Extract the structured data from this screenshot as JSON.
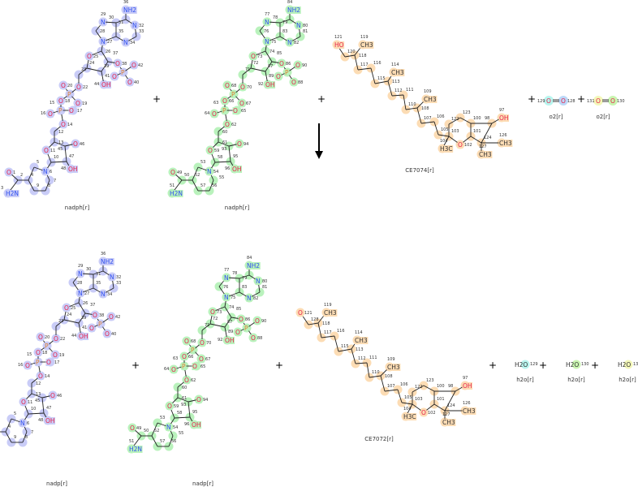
{
  "reaction": {
    "direction_arrow": "down-arrow-icon",
    "plus": "+",
    "reactants": [
      {
        "name": "nadph[r]",
        "highlight": "#c9ccf7"
      },
      {
        "name": "nadph[r]",
        "highlight": "#b9f2bc"
      },
      {
        "name": "CE7074[r]",
        "highlight": "#fcdcb4"
      },
      {
        "name": "o2[r]",
        "atoms": [
          "O",
          "O"
        ],
        "nums": [
          "129",
          "128"
        ],
        "highlights": [
          "#b8f5ee",
          "#bcd8f8"
        ]
      },
      {
        "name": "o2[r]",
        "atoms": [
          "O",
          "O"
        ],
        "nums": [
          "131",
          "130"
        ],
        "highlights": [
          "#f3f7b8",
          "#c9f5b0"
        ]
      }
    ],
    "products": [
      {
        "name": "nadp[r]",
        "highlight": "#c9ccf7"
      },
      {
        "name": "nadp[r]",
        "highlight": "#b9f2bc"
      },
      {
        "name": "CE7072[r]",
        "highlight": "#fcdcb4"
      },
      {
        "name": "h2o[r]",
        "formula": "H2O",
        "num": "129",
        "highlight": "#b8f5ee"
      },
      {
        "name": "h2o[r]",
        "formula": "H2O",
        "num": "130",
        "highlight": "#c9f5b0"
      },
      {
        "name": "h2o[r]",
        "formula": "H2O",
        "num": "131",
        "highlight": "#f3f7b8"
      }
    ]
  },
  "nucleotide_elements": [
    "NH2",
    "",
    "N",
    "",
    "N",
    "",
    "",
    "N",
    "",
    "N",
    "",
    "O",
    "",
    "",
    "",
    "O",
    "P",
    "O",
    "O",
    "O",
    "OH",
    "",
    "O",
    "P",
    "O",
    "O",
    "O",
    "P",
    "O",
    "O",
    "O",
    "",
    "",
    "O",
    "",
    "",
    "O",
    "",
    "OH",
    "N",
    "",
    "",
    "",
    "",
    "",
    "",
    "O",
    "H2N"
  ],
  "nadph_blue_nums": [
    "36",
    "31",
    "32",
    "33",
    "34",
    "35",
    "30",
    "29",
    "28",
    "27",
    "26",
    "25",
    "24",
    "39",
    "37",
    "38",
    "",
    "42",
    "41",
    "40",
    "44",
    "23",
    "22",
    "",
    "20",
    "19",
    "18",
    "15",
    "16",
    "17",
    "14",
    "12",
    "13",
    "11",
    "10",
    "45",
    "46",
    "47",
    "48",
    "6",
    "5",
    "4",
    "9",
    "8",
    "7",
    "2",
    "1",
    "3"
  ],
  "nadph_green_nums": [
    "84",
    "79",
    "80",
    "81",
    "82",
    "83",
    "78",
    "77",
    "76",
    "75",
    "74",
    "73",
    "72",
    "87",
    "85",
    "86",
    "",
    "90",
    "89",
    "88",
    "92",
    "71",
    "70",
    "",
    "68",
    "67",
    "66",
    "63",
    "64",
    "65",
    "62",
    "60",
    "61",
    "59",
    "58",
    "93",
    "94",
    "95",
    "96",
    "54",
    "53",
    "52",
    "57",
    "56",
    "55",
    "50",
    "49",
    "51"
  ],
  "chromanol_elements": [
    "HO",
    "",
    "",
    "CH3",
    "",
    "",
    "",
    "",
    "CH3",
    "",
    "",
    "",
    "",
    "CH3",
    "",
    "",
    "",
    "",
    "O",
    "",
    "",
    "",
    "",
    "OH",
    "",
    "CH3",
    "",
    "CH3",
    "H3C"
  ],
  "ce7074_nums": [
    "121",
    "120",
    "118",
    "119",
    "117",
    "116",
    "115",
    "113",
    "114",
    "112",
    "111",
    "110",
    "108",
    "109",
    "107",
    "106",
    "105",
    "103",
    "102",
    "101",
    "122",
    "123",
    "100",
    "97",
    "98",
    "126",
    "124",
    "127",
    "104"
  ],
  "ce7072_elements": [
    "O",
    "",
    "",
    "CH3",
    "",
    "",
    "",
    "",
    "CH3",
    "",
    "",
    "",
    "",
    "CH3",
    "",
    "",
    "",
    "",
    "O",
    "",
    "",
    "",
    "",
    "OH",
    "",
    "CH3",
    "",
    "CH3",
    "H3C"
  ],
  "ce7072_nums": [
    "121",
    "128",
    "118",
    "119",
    "117",
    "116",
    "115",
    "113",
    "114",
    "112",
    "111",
    "110",
    "108",
    "109",
    "107",
    "106",
    "105",
    "103",
    "102",
    "101",
    "122",
    "123",
    "100",
    "97",
    "98",
    "126",
    "124",
    "127",
    "104"
  ]
}
